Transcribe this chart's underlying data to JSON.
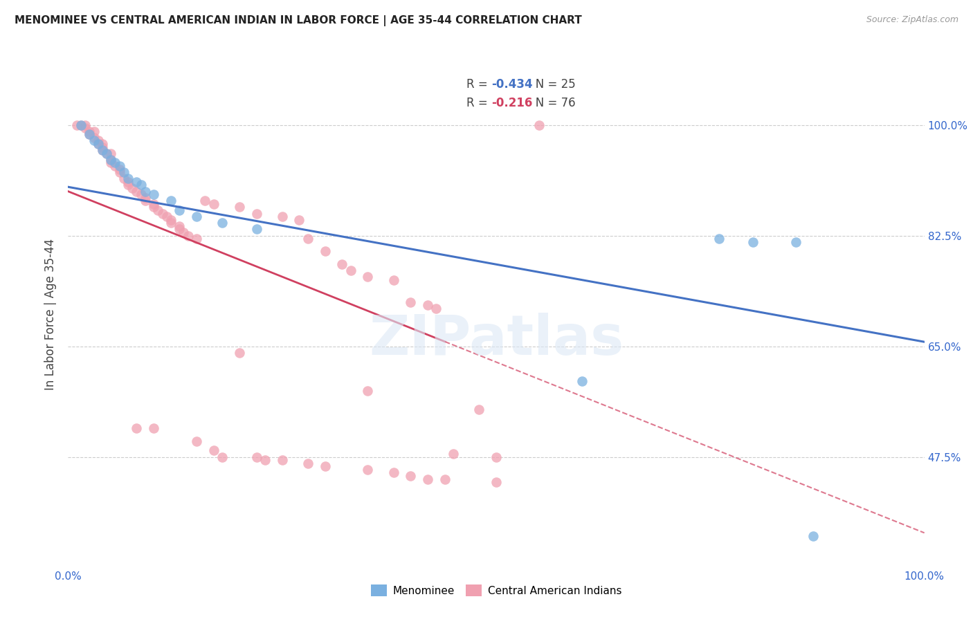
{
  "title": "MENOMINEE VS CENTRAL AMERICAN INDIAN IN LABOR FORCE | AGE 35-44 CORRELATION CHART",
  "source": "Source: ZipAtlas.com",
  "ylabel": "In Labor Force | Age 35-44",
  "xlim": [
    0.0,
    1.0
  ],
  "ylim": [
    0.3,
    1.1
  ],
  "ytick_positions": [
    0.475,
    0.65,
    0.825,
    1.0
  ],
  "ytick_labels": [
    "47.5%",
    "65.0%",
    "82.5%",
    "100.0%"
  ],
  "watermark": "ZIPatlas",
  "menominee_color": "#7ab0e0",
  "cai_color": "#f0a0b0",
  "blue_line_color": "#4472c4",
  "pink_line_color": "#d04060",
  "pink_dashed_color": "#d04060",
  "menominee_points": [
    [
      0.015,
      1.0
    ],
    [
      0.025,
      0.985
    ],
    [
      0.03,
      0.975
    ],
    [
      0.035,
      0.97
    ],
    [
      0.04,
      0.96
    ],
    [
      0.045,
      0.955
    ],
    [
      0.05,
      0.945
    ],
    [
      0.055,
      0.94
    ],
    [
      0.06,
      0.935
    ],
    [
      0.065,
      0.925
    ],
    [
      0.07,
      0.915
    ],
    [
      0.08,
      0.91
    ],
    [
      0.085,
      0.905
    ],
    [
      0.09,
      0.895
    ],
    [
      0.1,
      0.89
    ],
    [
      0.12,
      0.88
    ],
    [
      0.13,
      0.865
    ],
    [
      0.15,
      0.855
    ],
    [
      0.18,
      0.845
    ],
    [
      0.22,
      0.835
    ],
    [
      0.6,
      0.595
    ],
    [
      0.76,
      0.82
    ],
    [
      0.8,
      0.815
    ],
    [
      0.85,
      0.815
    ],
    [
      0.87,
      0.35
    ]
  ],
  "cai_points": [
    [
      0.01,
      1.0
    ],
    [
      0.015,
      1.0
    ],
    [
      0.02,
      1.0
    ],
    [
      0.02,
      0.995
    ],
    [
      0.025,
      0.99
    ],
    [
      0.025,
      0.985
    ],
    [
      0.03,
      0.99
    ],
    [
      0.03,
      0.98
    ],
    [
      0.035,
      0.975
    ],
    [
      0.035,
      0.97
    ],
    [
      0.04,
      0.97
    ],
    [
      0.04,
      0.965
    ],
    [
      0.04,
      0.96
    ],
    [
      0.045,
      0.955
    ],
    [
      0.05,
      0.955
    ],
    [
      0.05,
      0.945
    ],
    [
      0.05,
      0.94
    ],
    [
      0.055,
      0.935
    ],
    [
      0.06,
      0.93
    ],
    [
      0.06,
      0.925
    ],
    [
      0.065,
      0.915
    ],
    [
      0.07,
      0.91
    ],
    [
      0.07,
      0.905
    ],
    [
      0.075,
      0.9
    ],
    [
      0.08,
      0.895
    ],
    [
      0.085,
      0.89
    ],
    [
      0.09,
      0.885
    ],
    [
      0.09,
      0.88
    ],
    [
      0.1,
      0.875
    ],
    [
      0.1,
      0.87
    ],
    [
      0.105,
      0.865
    ],
    [
      0.11,
      0.86
    ],
    [
      0.115,
      0.855
    ],
    [
      0.12,
      0.85
    ],
    [
      0.12,
      0.845
    ],
    [
      0.13,
      0.84
    ],
    [
      0.13,
      0.835
    ],
    [
      0.135,
      0.83
    ],
    [
      0.14,
      0.825
    ],
    [
      0.15,
      0.82
    ],
    [
      0.16,
      0.88
    ],
    [
      0.17,
      0.875
    ],
    [
      0.2,
      0.87
    ],
    [
      0.22,
      0.86
    ],
    [
      0.25,
      0.855
    ],
    [
      0.27,
      0.85
    ],
    [
      0.28,
      0.82
    ],
    [
      0.3,
      0.8
    ],
    [
      0.32,
      0.78
    ],
    [
      0.33,
      0.77
    ],
    [
      0.35,
      0.76
    ],
    [
      0.38,
      0.755
    ],
    [
      0.4,
      0.72
    ],
    [
      0.42,
      0.715
    ],
    [
      0.43,
      0.71
    ],
    [
      0.08,
      0.52
    ],
    [
      0.1,
      0.52
    ],
    [
      0.15,
      0.5
    ],
    [
      0.17,
      0.485
    ],
    [
      0.18,
      0.475
    ],
    [
      0.22,
      0.475
    ],
    [
      0.23,
      0.47
    ],
    [
      0.25,
      0.47
    ],
    [
      0.28,
      0.465
    ],
    [
      0.3,
      0.46
    ],
    [
      0.35,
      0.455
    ],
    [
      0.38,
      0.45
    ],
    [
      0.4,
      0.445
    ],
    [
      0.42,
      0.44
    ],
    [
      0.44,
      0.44
    ],
    [
      0.5,
      0.435
    ],
    [
      0.55,
      1.0
    ],
    [
      0.2,
      0.64
    ],
    [
      0.35,
      0.58
    ],
    [
      0.48,
      0.55
    ],
    [
      0.45,
      0.48
    ],
    [
      0.5,
      0.475
    ]
  ]
}
